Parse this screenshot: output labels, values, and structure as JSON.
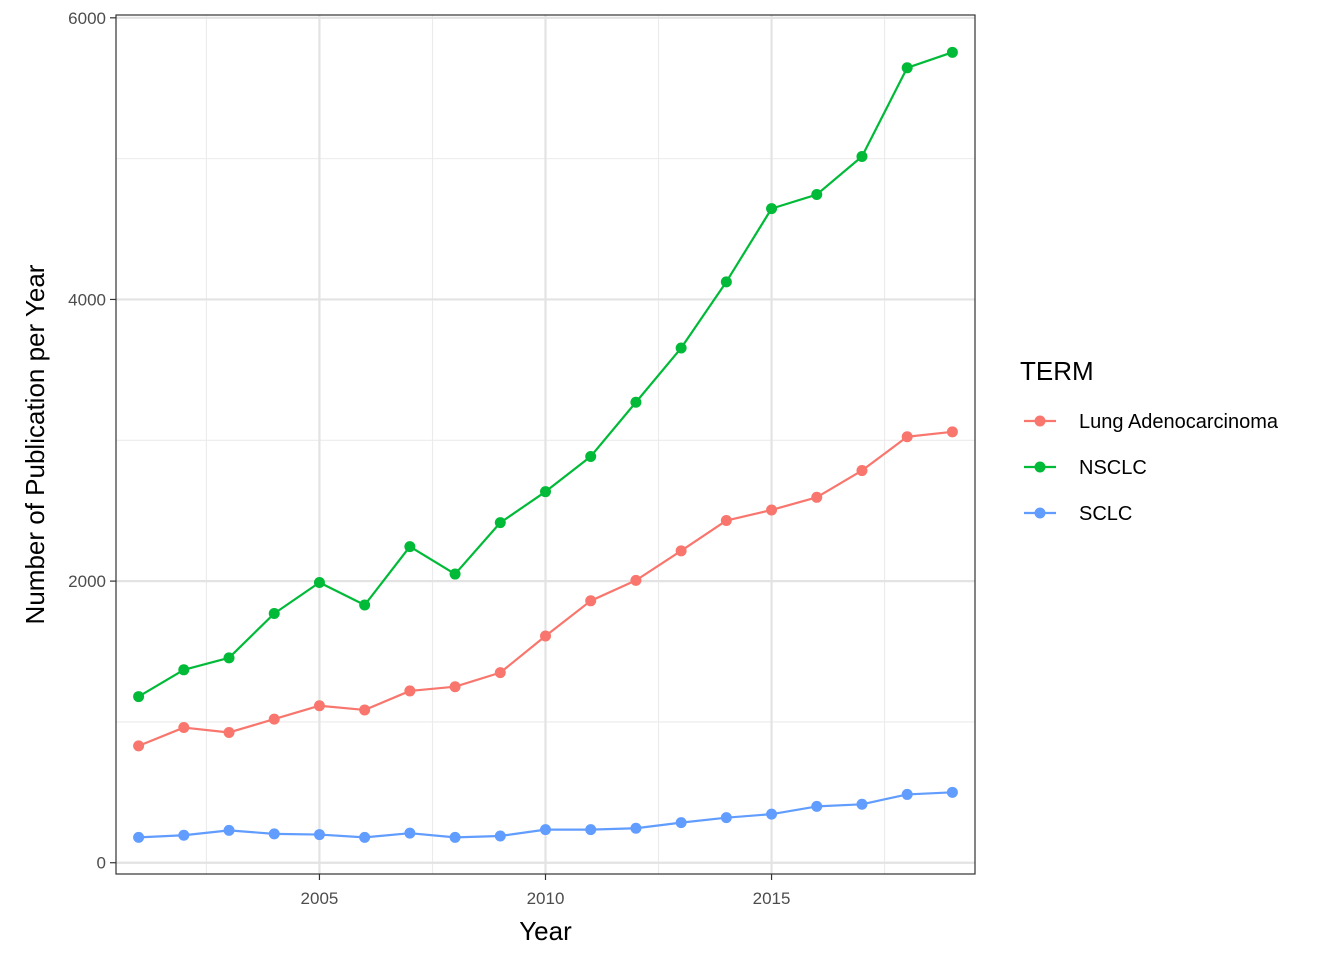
{
  "chart_data": {
    "type": "line",
    "xlabel": "Year",
    "ylabel": "Number of Publication per Year",
    "xlim": [
      2000.5,
      2019.5
    ],
    "ylim": [
      -80,
      6020
    ],
    "x_ticks": [
      2005,
      2010,
      2015
    ],
    "x_tick_labels": [
      "2005",
      "2010",
      "2015"
    ],
    "x_minor_ticks": [
      2002.5,
      2007.5,
      2012.5,
      2017.5
    ],
    "y_ticks": [
      0,
      2000,
      4000,
      6000
    ],
    "y_tick_labels": [
      "0",
      "2000",
      "4000",
      "6000"
    ],
    "y_minor_ticks": [
      1000,
      3000,
      5000
    ],
    "grid": true,
    "theme": "bw",
    "legend": {
      "title": "TERM",
      "position": "right"
    },
    "x": [
      2001,
      2002,
      2003,
      2004,
      2005,
      2006,
      2007,
      2008,
      2009,
      2010,
      2011,
      2012,
      2013,
      2014,
      2015,
      2016,
      2017,
      2018,
      2019
    ],
    "series": [
      {
        "name": "Lung Adenocarcinoma",
        "color": "#F8766D",
        "values": [
          830,
          960,
          925,
          1020,
          1115,
          1085,
          1220,
          1250,
          1350,
          1610,
          1860,
          2005,
          2215,
          2430,
          2505,
          2595,
          2785,
          3025,
          3060
        ]
      },
      {
        "name": "NSCLC",
        "color": "#00BA38",
        "values": [
          1180,
          1370,
          1455,
          1770,
          1990,
          1830,
          2245,
          2050,
          2415,
          2635,
          2885,
          3270,
          3655,
          4125,
          4645,
          4745,
          5015,
          5645,
          5755
        ]
      },
      {
        "name": "SCLC",
        "color": "#619CFF",
        "values": [
          180,
          195,
          230,
          205,
          200,
          180,
          210,
          180,
          190,
          235,
          235,
          245,
          285,
          320,
          345,
          400,
          415,
          485,
          500
        ]
      }
    ]
  }
}
